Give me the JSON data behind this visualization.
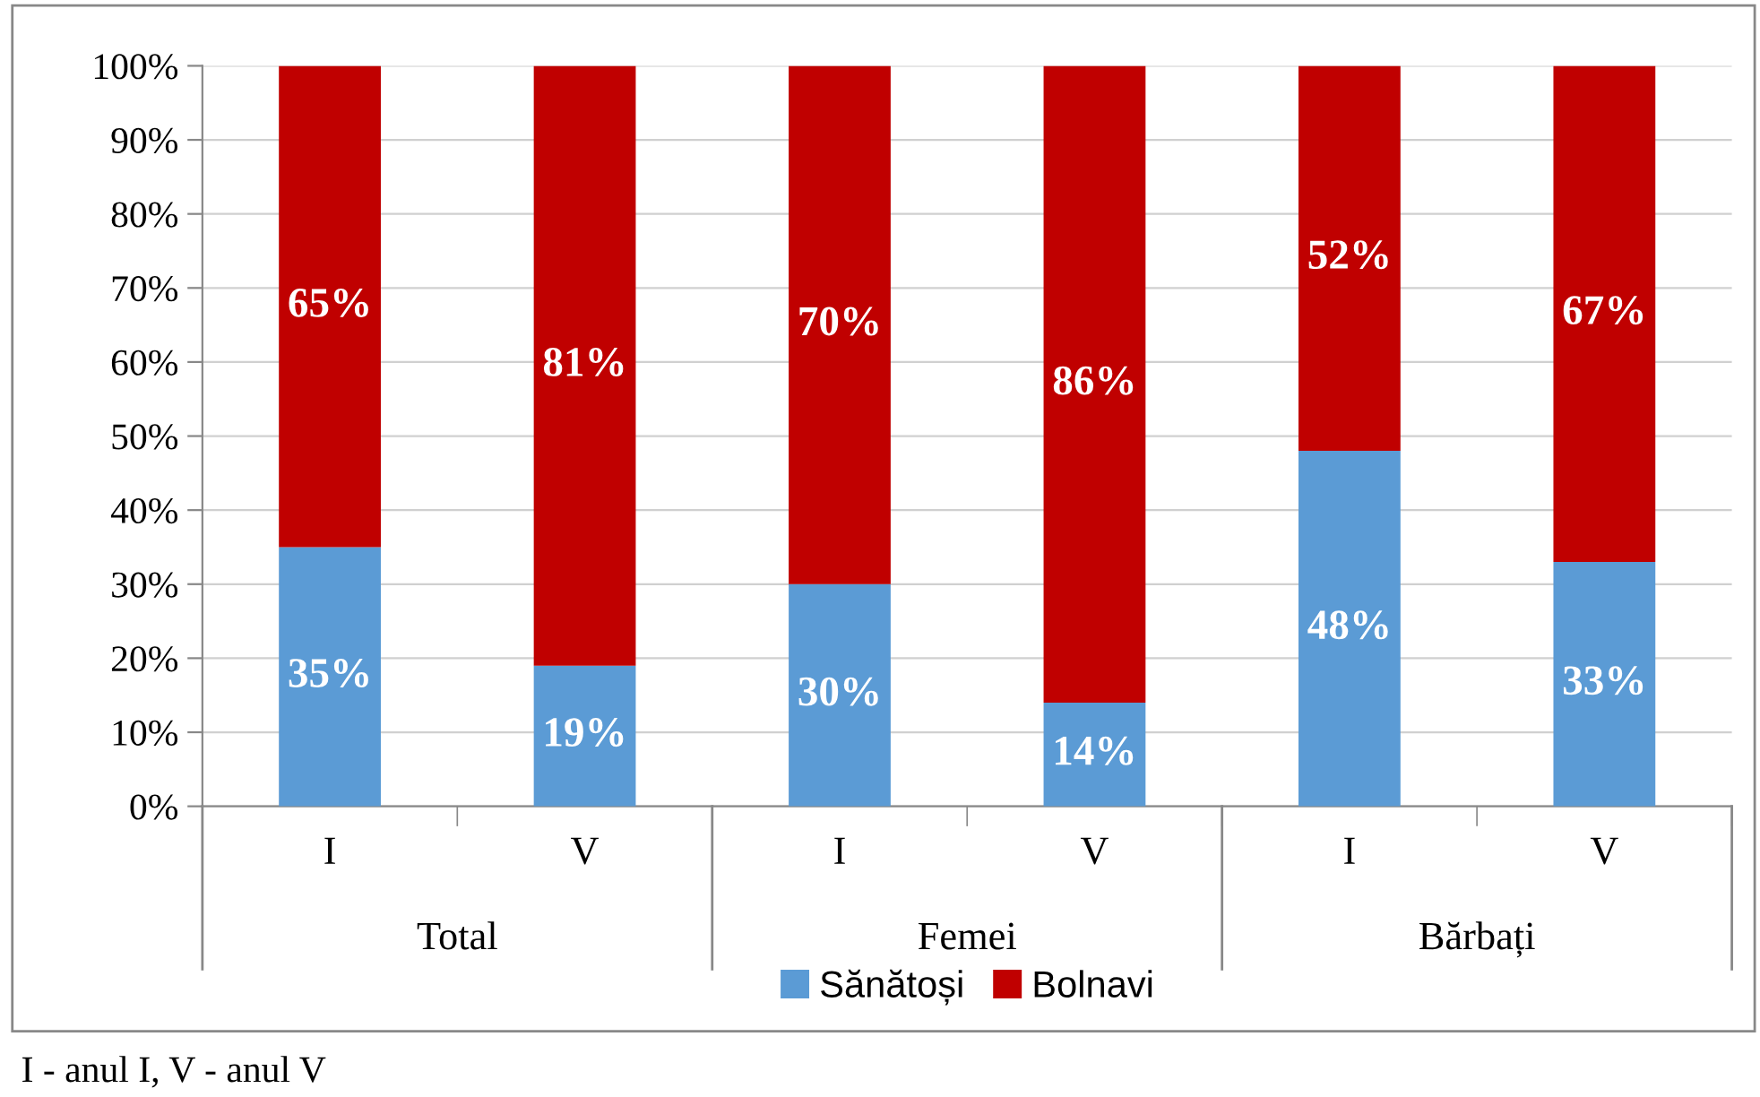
{
  "chart_data": {
    "type": "bar",
    "stacked": true,
    "categories": [
      "I",
      "V",
      "I",
      "V",
      "I",
      "V"
    ],
    "series": [
      {
        "name": "Sănătoși",
        "color": "#5b9bd5",
        "values": [
          35,
          19,
          30,
          14,
          48,
          33
        ],
        "value_labels": [
          "35%",
          "19%",
          "30%",
          "14%",
          "48%",
          "33%"
        ]
      },
      {
        "name": "Bolnavi",
        "color": "#c00000",
        "values": [
          65,
          81,
          70,
          86,
          52,
          67
        ],
        "value_labels": [
          "65%",
          "81%",
          "70%",
          "86%",
          "52%",
          "67%"
        ]
      }
    ],
    "ylim": [
      0,
      100
    ],
    "yticks": [
      {
        "value": 0,
        "label": "0%"
      },
      {
        "value": 10,
        "label": "10%"
      },
      {
        "value": 20,
        "label": "20%"
      },
      {
        "value": 30,
        "label": "30%"
      },
      {
        "value": 40,
        "label": "40%"
      },
      {
        "value": 50,
        "label": "50%"
      },
      {
        "value": 60,
        "label": "60%"
      },
      {
        "value": 70,
        "label": "70%"
      },
      {
        "value": 80,
        "label": "80%"
      },
      {
        "value": 90,
        "label": "90%"
      },
      {
        "value": 100,
        "label": "100%"
      }
    ],
    "grid": "y",
    "legend": "bottom",
    "annotations": [
      "Total",
      "Femei",
      "Bărbați",
      "I - anul I, V - anul V"
    ]
  }
}
